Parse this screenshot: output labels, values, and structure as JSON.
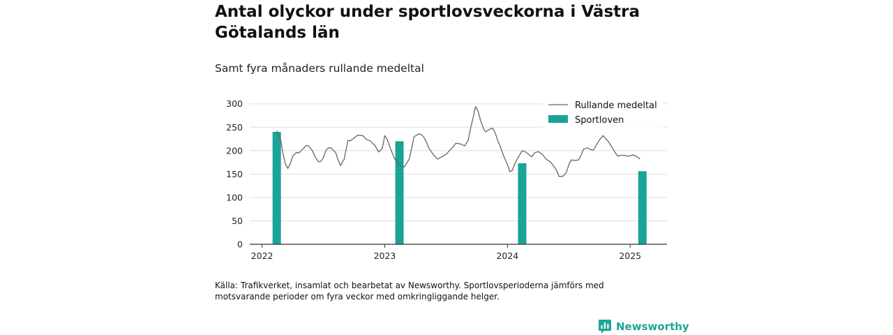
{
  "title": "Antal olyckor under sportlovsveckorna i Västra Götalands län",
  "subtitle": "Samt fyra månaders rullande medeltal",
  "footnote": "Källa: Trafikverket, insamlat och bearbetat av Newsworthy. Sportlovsperioderna jämförs med motsvarande perioder om fyra veckor med omkringliggande helger.",
  "brand": "Newsworthy",
  "colors": {
    "bar": "#1aa397",
    "line": "#666666",
    "grid": "#dddddd",
    "axis": "#333333",
    "brand": "#1fa597"
  },
  "chart_data": {
    "type": "bar+line",
    "xlim": [
      2021.9,
      2025.3
    ],
    "ylim": [
      0,
      300
    ],
    "yticks": [
      0,
      50,
      100,
      150,
      200,
      250,
      300
    ],
    "xticks": [
      2022,
      2023,
      2024,
      2025
    ],
    "grid": true,
    "legend_position": "top-right",
    "legend": [
      "Rullande medeltal",
      "Sportloven"
    ],
    "bars": {
      "name": "Sportloven",
      "x": [
        2022.12,
        2023.12,
        2024.12,
        2025.1
      ],
      "values": [
        240,
        220,
        173,
        156
      ]
    },
    "line": {
      "name": "Rullande medeltal",
      "x": [
        2022.12,
        2022.15,
        2022.17,
        2022.19,
        2022.21,
        2022.23,
        2022.25,
        2022.28,
        2022.3,
        2022.33,
        2022.36,
        2022.38,
        2022.41,
        2022.43,
        2022.46,
        2022.48,
        2022.5,
        2022.52,
        2022.54,
        2022.56,
        2022.6,
        2022.62,
        2022.64,
        2022.67,
        2022.7,
        2022.72,
        2022.74,
        2022.78,
        2022.82,
        2022.85,
        2022.88,
        2022.92,
        2022.95,
        2022.98,
        2023.0,
        2023.02,
        2023.05,
        2023.08,
        2023.1,
        2023.13,
        2023.16,
        2023.2,
        2023.24,
        2023.28,
        2023.3,
        2023.32,
        2023.34,
        2023.36,
        2023.4,
        2023.43,
        2023.46,
        2023.5,
        2023.52,
        2023.55,
        2023.58,
        2023.62,
        2023.65,
        2023.68,
        2023.7,
        2023.72,
        2023.74,
        2023.76,
        2023.78,
        2023.8,
        2023.82,
        2023.85,
        2023.88,
        2023.9,
        2023.92,
        2023.94,
        2023.97,
        2024.0,
        2024.02,
        2024.04,
        2024.06,
        2024.08,
        2024.12,
        2024.15,
        2024.18,
        2024.2,
        2024.22,
        2024.25,
        2024.28,
        2024.3,
        2024.32,
        2024.35,
        2024.38,
        2024.4,
        2024.42,
        2024.45,
        2024.48,
        2024.5,
        2024.52,
        2024.55,
        2024.58,
        2024.6,
        2024.62,
        2024.65,
        2024.68,
        2024.7,
        2024.72,
        2024.75,
        2024.78,
        2024.82,
        2024.85,
        2024.88,
        2024.9,
        2024.92,
        2024.95,
        2024.98,
        2025.0,
        2025.02,
        2025.05,
        2025.08
      ],
      "values": [
        242,
        225,
        195,
        172,
        162,
        172,
        188,
        196,
        195,
        203,
        211,
        210,
        200,
        188,
        176,
        177,
        185,
        200,
        206,
        206,
        196,
        180,
        168,
        182,
        222,
        221,
        225,
        233,
        232,
        224,
        221,
        211,
        197,
        205,
        232,
        224,
        202,
        183,
        176,
        168,
        165,
        182,
        230,
        236,
        234,
        228,
        218,
        205,
        190,
        182,
        186,
        192,
        198,
        206,
        216,
        214,
        210,
        222,
        248,
        270,
        294,
        285,
        265,
        250,
        240,
        245,
        248,
        238,
        222,
        210,
        188,
        170,
        155,
        158,
        172,
        182,
        200,
        197,
        190,
        187,
        195,
        198,
        193,
        187,
        181,
        176,
        166,
        158,
        145,
        145,
        153,
        170,
        180,
        179,
        180,
        190,
        203,
        206,
        202,
        201,
        210,
        223,
        232,
        220,
        208,
        195,
        188,
        190,
        190,
        188,
        189,
        191,
        188,
        182
      ]
    }
  }
}
